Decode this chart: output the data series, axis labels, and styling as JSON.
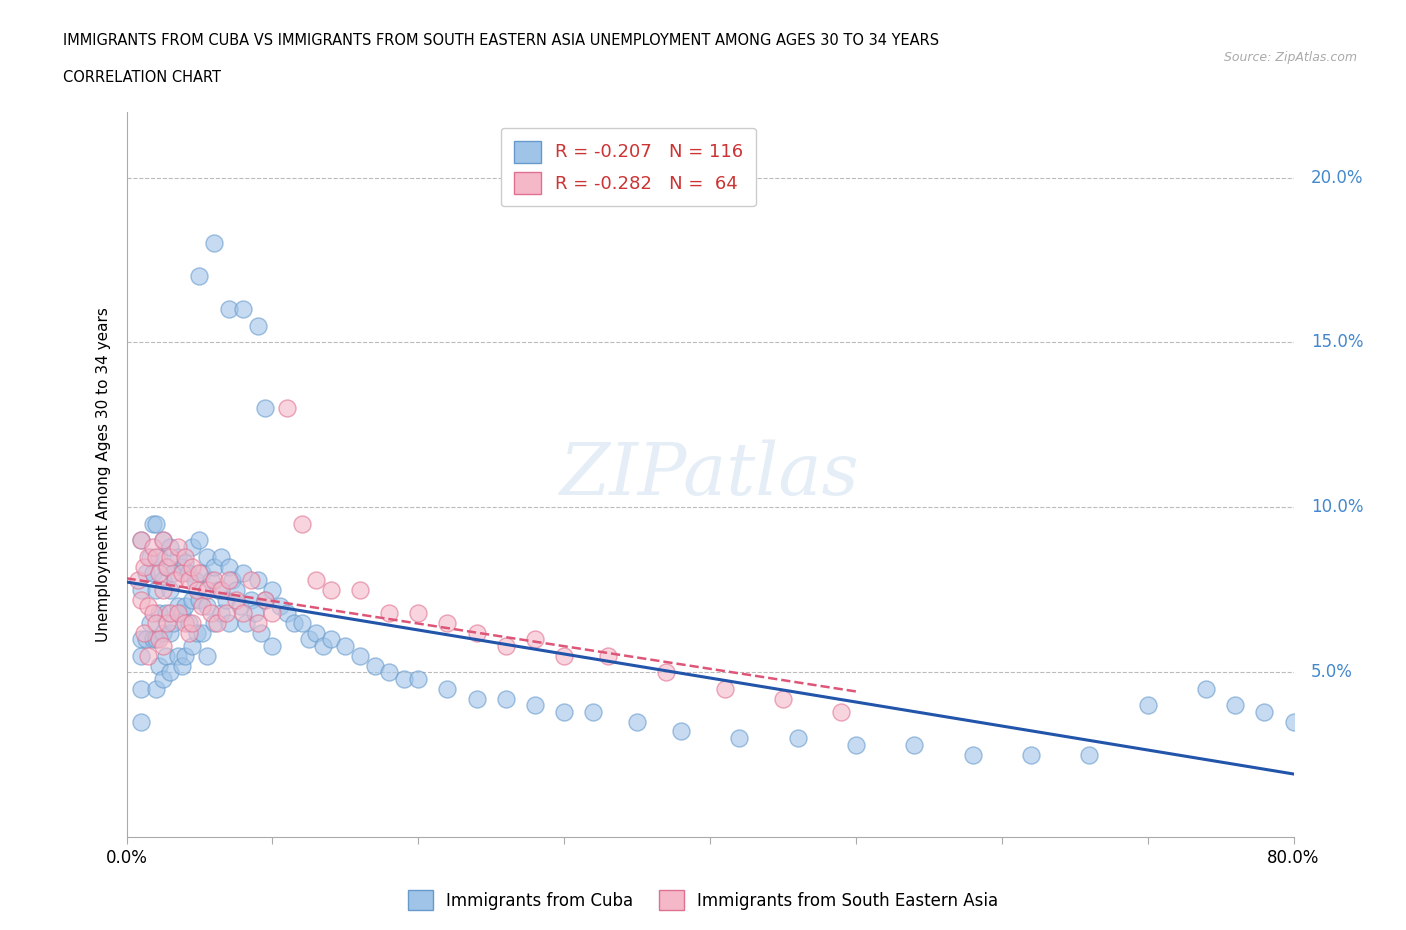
{
  "title_line1": "IMMIGRANTS FROM CUBA VS IMMIGRANTS FROM SOUTH EASTERN ASIA UNEMPLOYMENT AMONG AGES 30 TO 34 YEARS",
  "title_line2": "CORRELATION CHART",
  "source_text": "Source: ZipAtlas.com",
  "ylabel": "Unemployment Among Ages 30 to 34 years",
  "xlim": [
    0.0,
    0.8
  ],
  "ylim": [
    0.0,
    0.22
  ],
  "cuba_color": "#a0c4e8",
  "cuba_edge_color": "#6699cc",
  "sea_color": "#f4b8c8",
  "sea_edge_color": "#e07090",
  "cuba_line_color": "#2255aa",
  "sea_line_color": "#dd5577",
  "background_color": "#ffffff",
  "grid_color": "#bbbbbb",
  "watermark_color": "#dddddd",
  "ytick_label_color": "#4488cc",
  "cuba_scatter_x": [
    0.01,
    0.01,
    0.01,
    0.01,
    0.01,
    0.01,
    0.013,
    0.013,
    0.016,
    0.016,
    0.018,
    0.018,
    0.018,
    0.02,
    0.02,
    0.02,
    0.02,
    0.022,
    0.022,
    0.022,
    0.025,
    0.025,
    0.025,
    0.025,
    0.027,
    0.027,
    0.027,
    0.03,
    0.03,
    0.03,
    0.03,
    0.032,
    0.032,
    0.035,
    0.035,
    0.035,
    0.038,
    0.038,
    0.038,
    0.04,
    0.04,
    0.04,
    0.042,
    0.043,
    0.045,
    0.045,
    0.045,
    0.047,
    0.048,
    0.05,
    0.05,
    0.052,
    0.052,
    0.055,
    0.055,
    0.055,
    0.058,
    0.06,
    0.06,
    0.063,
    0.065,
    0.065,
    0.068,
    0.07,
    0.07,
    0.072,
    0.075,
    0.078,
    0.08,
    0.082,
    0.085,
    0.088,
    0.09,
    0.092,
    0.095,
    0.1,
    0.1,
    0.105,
    0.11,
    0.115,
    0.12,
    0.125,
    0.13,
    0.135,
    0.14,
    0.15,
    0.16,
    0.17,
    0.18,
    0.19,
    0.2,
    0.22,
    0.24,
    0.26,
    0.28,
    0.3,
    0.32,
    0.35,
    0.38,
    0.42,
    0.46,
    0.5,
    0.54,
    0.58,
    0.62,
    0.66,
    0.7,
    0.74,
    0.76,
    0.78,
    0.8,
    0.05,
    0.06,
    0.07,
    0.08,
    0.09,
    0.095
  ],
  "cuba_scatter_y": [
    0.09,
    0.075,
    0.06,
    0.055,
    0.045,
    0.035,
    0.08,
    0.06,
    0.085,
    0.065,
    0.095,
    0.08,
    0.06,
    0.095,
    0.075,
    0.06,
    0.045,
    0.085,
    0.068,
    0.052,
    0.09,
    0.078,
    0.062,
    0.048,
    0.082,
    0.068,
    0.055,
    0.088,
    0.075,
    0.062,
    0.05,
    0.08,
    0.065,
    0.085,
    0.07,
    0.055,
    0.082,
    0.068,
    0.052,
    0.083,
    0.07,
    0.055,
    0.08,
    0.065,
    0.088,
    0.072,
    0.058,
    0.078,
    0.062,
    0.09,
    0.072,
    0.08,
    0.062,
    0.085,
    0.07,
    0.055,
    0.078,
    0.082,
    0.065,
    0.075,
    0.085,
    0.068,
    0.072,
    0.082,
    0.065,
    0.078,
    0.075,
    0.07,
    0.08,
    0.065,
    0.072,
    0.068,
    0.078,
    0.062,
    0.072,
    0.075,
    0.058,
    0.07,
    0.068,
    0.065,
    0.065,
    0.06,
    0.062,
    0.058,
    0.06,
    0.058,
    0.055,
    0.052,
    0.05,
    0.048,
    0.048,
    0.045,
    0.042,
    0.042,
    0.04,
    0.038,
    0.038,
    0.035,
    0.032,
    0.03,
    0.03,
    0.028,
    0.028,
    0.025,
    0.025,
    0.025,
    0.04,
    0.045,
    0.04,
    0.038,
    0.035,
    0.17,
    0.18,
    0.16,
    0.16,
    0.155,
    0.13
  ],
  "sea_scatter_x": [
    0.008,
    0.01,
    0.01,
    0.012,
    0.012,
    0.015,
    0.015,
    0.015,
    0.018,
    0.018,
    0.02,
    0.02,
    0.022,
    0.022,
    0.025,
    0.025,
    0.025,
    0.028,
    0.028,
    0.03,
    0.03,
    0.033,
    0.035,
    0.035,
    0.038,
    0.04,
    0.04,
    0.043,
    0.043,
    0.045,
    0.045,
    0.048,
    0.05,
    0.052,
    0.055,
    0.058,
    0.06,
    0.062,
    0.065,
    0.068,
    0.07,
    0.075,
    0.08,
    0.085,
    0.09,
    0.095,
    0.1,
    0.11,
    0.12,
    0.13,
    0.14,
    0.16,
    0.18,
    0.2,
    0.22,
    0.24,
    0.26,
    0.28,
    0.3,
    0.33,
    0.37,
    0.41,
    0.45,
    0.49
  ],
  "sea_scatter_y": [
    0.078,
    0.09,
    0.072,
    0.082,
    0.062,
    0.085,
    0.07,
    0.055,
    0.088,
    0.068,
    0.085,
    0.065,
    0.08,
    0.06,
    0.09,
    0.075,
    0.058,
    0.082,
    0.065,
    0.085,
    0.068,
    0.078,
    0.088,
    0.068,
    0.08,
    0.085,
    0.065,
    0.078,
    0.062,
    0.082,
    0.065,
    0.075,
    0.08,
    0.07,
    0.075,
    0.068,
    0.078,
    0.065,
    0.075,
    0.068,
    0.078,
    0.072,
    0.068,
    0.078,
    0.065,
    0.072,
    0.068,
    0.13,
    0.095,
    0.078,
    0.075,
    0.075,
    0.068,
    0.068,
    0.065,
    0.062,
    0.058,
    0.06,
    0.055,
    0.055,
    0.05,
    0.045,
    0.042,
    0.038
  ]
}
